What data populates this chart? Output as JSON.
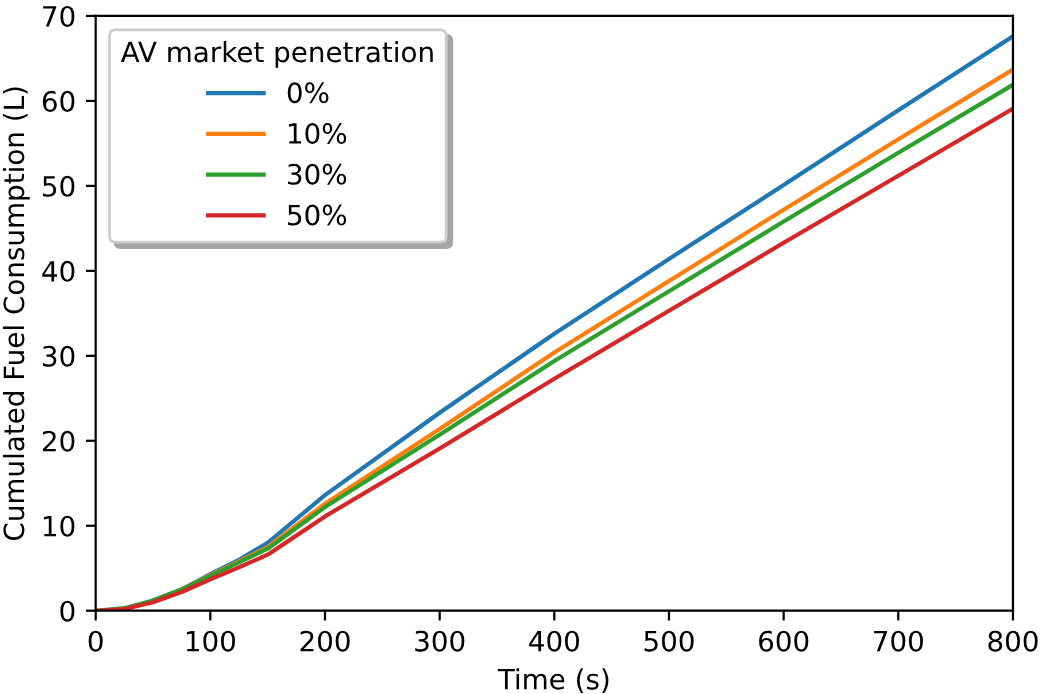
{
  "chart_data": {
    "type": "line",
    "xlabel": "Time (s)",
    "ylabel": "Cumulated Fuel Consumption (L)",
    "legend_title": "AV market penetration",
    "legend": "top left",
    "grid": false,
    "x": [
      0,
      25,
      50,
      75,
      100,
      125,
      150,
      200,
      300,
      400,
      500,
      600,
      700,
      800
    ],
    "xlim": [
      0,
      800
    ],
    "xticks": [
      0,
      100,
      200,
      300,
      400,
      500,
      600,
      700,
      800
    ],
    "ylim": [
      0,
      70
    ],
    "yticks": [
      0,
      10,
      20,
      30,
      40,
      50,
      60,
      70
    ],
    "series": [
      {
        "name": "0%",
        "color": "#1f77b4",
        "values": [
          null,
          null,
          1.2,
          2.5,
          4.3,
          6.0,
          8.0,
          13.6,
          23.3,
          32.6,
          41.4,
          50.1,
          58.9,
          67.6
        ]
      },
      {
        "name": "10%",
        "color": "#ff7f0e",
        "values": [
          null,
          null,
          null,
          2.5,
          4.2,
          5.8,
          7.5,
          12.6,
          21.4,
          30.4,
          38.8,
          47.2,
          55.5,
          63.7
        ]
      },
      {
        "name": "30%",
        "color": "#2ca02c",
        "values": [
          0,
          0.3,
          1.2,
          2.5,
          4.1,
          5.7,
          7.3,
          12.2,
          20.7,
          29.4,
          37.6,
          45.8,
          53.9,
          61.9
        ]
      },
      {
        "name": "50%",
        "color": "#d62728",
        "values": [
          0,
          0.2,
          1.0,
          2.2,
          3.7,
          5.1,
          6.6,
          11.1,
          19.1,
          27.3,
          35.3,
          43.3,
          51.2,
          59.1
        ]
      }
    ]
  }
}
